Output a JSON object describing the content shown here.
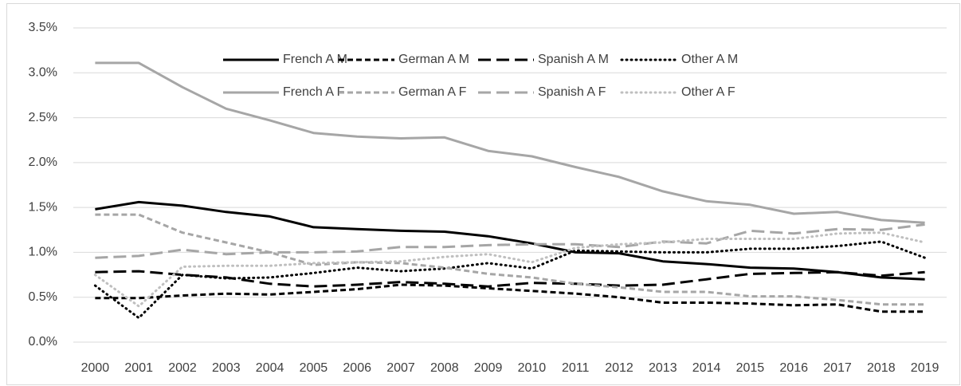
{
  "chart_data": {
    "type": "line",
    "categories": [
      "2000",
      "2001",
      "2002",
      "2003",
      "2004",
      "2005",
      "2006",
      "2007",
      "2008",
      "2009",
      "2010",
      "2011",
      "2012",
      "2013",
      "2014",
      "2015",
      "2016",
      "2017",
      "2018",
      "2019"
    ],
    "ylim": [
      0,
      3.5
    ],
    "yticks": [
      {
        "value": 0,
        "label": "0.0%"
      },
      {
        "value": 0.5,
        "label": "0.5%"
      },
      {
        "value": 1,
        "label": "1.0%"
      },
      {
        "value": 1.5,
        "label": "1.5%"
      },
      {
        "value": 2,
        "label": "2.0%"
      },
      {
        "value": 2.5,
        "label": "2.5%"
      },
      {
        "value": 3,
        "label": "3.0%"
      },
      {
        "value": 3.5,
        "label": "3.5%"
      }
    ],
    "grid": true,
    "legend": "top",
    "series": [
      {
        "name": "French A M",
        "color": "#000000",
        "dash": "solid",
        "values": [
          1.48,
          1.56,
          1.52,
          1.45,
          1.4,
          1.28,
          1.26,
          1.24,
          1.23,
          1.18,
          1.1,
          1.0,
          0.99,
          0.9,
          0.87,
          0.83,
          0.82,
          0.78,
          0.72,
          0.7
        ]
      },
      {
        "name": "German A M",
        "color": "#000000",
        "dash": "short",
        "values": [
          0.49,
          0.49,
          0.52,
          0.54,
          0.53,
          0.56,
          0.59,
          0.64,
          0.63,
          0.6,
          0.57,
          0.54,
          0.5,
          0.44,
          0.44,
          0.43,
          0.41,
          0.42,
          0.34,
          0.34
        ]
      },
      {
        "name": "Spanish A M",
        "color": "#000000",
        "dash": "long",
        "values": [
          0.78,
          0.79,
          0.75,
          0.72,
          0.65,
          0.62,
          0.64,
          0.67,
          0.65,
          0.62,
          0.66,
          0.65,
          0.63,
          0.64,
          0.7,
          0.76,
          0.77,
          0.78,
          0.74,
          0.78
        ]
      },
      {
        "name": "Other A M",
        "color": "#000000",
        "dash": "dot",
        "values": [
          0.63,
          0.27,
          0.75,
          0.71,
          0.72,
          0.77,
          0.83,
          0.79,
          0.82,
          0.88,
          0.82,
          1.02,
          1.01,
          1.0,
          1.0,
          1.04,
          1.04,
          1.07,
          1.12,
          0.94
        ]
      },
      {
        "name": "French A F",
        "color": "#a6a6a6",
        "dash": "solid",
        "values": [
          3.11,
          3.11,
          2.84,
          2.6,
          2.47,
          2.33,
          2.29,
          2.27,
          2.28,
          2.13,
          2.07,
          1.95,
          1.84,
          1.68,
          1.57,
          1.53,
          1.43,
          1.45,
          1.36,
          1.33
        ]
      },
      {
        "name": "German A F",
        "color": "#a6a6a6",
        "dash": "short",
        "values": [
          1.42,
          1.42,
          1.22,
          1.11,
          1.0,
          0.86,
          0.89,
          0.88,
          0.83,
          0.76,
          0.72,
          0.65,
          0.61,
          0.56,
          0.56,
          0.51,
          0.51,
          0.47,
          0.42,
          0.42
        ]
      },
      {
        "name": "Spanish A F",
        "color": "#a6a6a6",
        "dash": "long",
        "values": [
          0.94,
          0.96,
          1.03,
          0.98,
          1.0,
          1.0,
          1.01,
          1.06,
          1.06,
          1.08,
          1.09,
          1.09,
          1.06,
          1.12,
          1.1,
          1.24,
          1.21,
          1.26,
          1.25,
          1.31
        ]
      },
      {
        "name": "Other A F",
        "color": "#bfbfbf",
        "dash": "dot",
        "values": [
          0.75,
          0.4,
          0.84,
          0.85,
          0.85,
          0.88,
          0.89,
          0.9,
          0.95,
          0.98,
          0.89,
          1.05,
          1.09,
          1.11,
          1.15,
          1.15,
          1.15,
          1.21,
          1.22,
          1.11
        ]
      }
    ]
  }
}
